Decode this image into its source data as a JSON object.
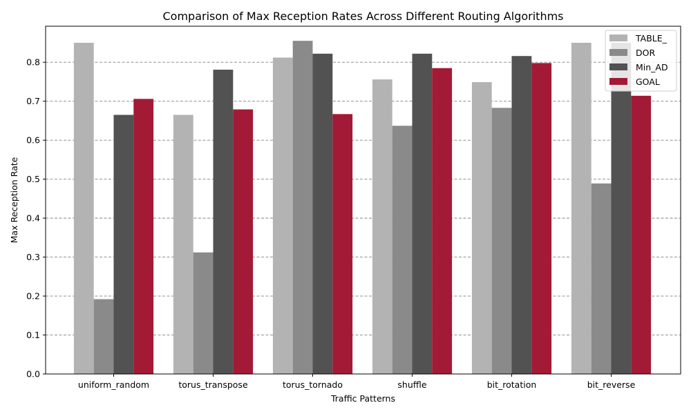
{
  "chart_data": {
    "type": "bar",
    "title": "Comparison of Max Reception Rates Across Different Routing Algorithms",
    "xlabel": "Traffic Patterns",
    "ylabel": "Max Reception Rate",
    "categories": [
      "uniform_random",
      "torus_transpose",
      "torus_tornado",
      "shuffle",
      "bit_rotation",
      "bit_reverse"
    ],
    "series": [
      {
        "name": "TABLE_",
        "color": "#b3b3b3",
        "values": [
          0.85,
          0.665,
          0.812,
          0.756,
          0.749,
          0.85
        ]
      },
      {
        "name": "DOR",
        "color": "#8a8a8a",
        "values": [
          0.192,
          0.312,
          0.855,
          0.637,
          0.683,
          0.489
        ]
      },
      {
        "name": "Min_AD",
        "color": "#525252",
        "values": [
          0.665,
          0.781,
          0.822,
          0.822,
          0.816,
          0.85
        ]
      },
      {
        "name": "GOAL",
        "color": "#a31a36",
        "values": [
          0.706,
          0.679,
          0.667,
          0.785,
          0.798,
          0.714
        ]
      }
    ],
    "ylim": [
      0,
      0.8925
    ],
    "yticks": [
      "0.0",
      "0.1",
      "0.2",
      "0.3",
      "0.4",
      "0.5",
      "0.6",
      "0.7",
      "0.8"
    ],
    "grid": "y-dashed",
    "legend_position": "top-right"
  }
}
